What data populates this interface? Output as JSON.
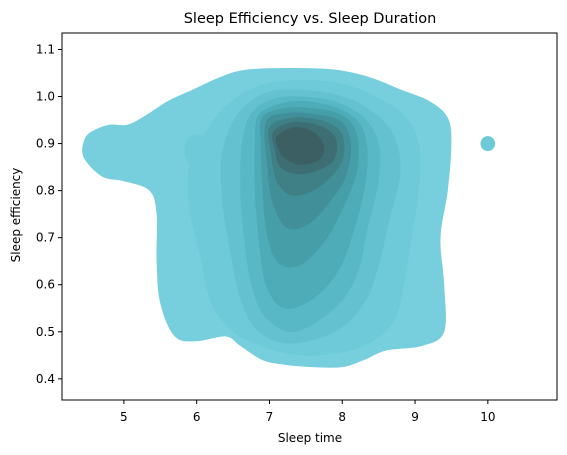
{
  "chart_data": {
    "type": "kde_density",
    "title": "Sleep Efficiency vs. Sleep Duration",
    "xlabel": "Sleep time",
    "ylabel": "Sleep efficiency",
    "xlim": [
      4.15,
      10.95
    ],
    "ylim": [
      0.355,
      1.135
    ],
    "xticks": [
      5,
      6,
      7,
      8,
      9,
      10
    ],
    "yticks": [
      0.4,
      0.5,
      0.6,
      0.7,
      0.8,
      0.9,
      1.0,
      1.1
    ],
    "grid": false,
    "legend": "none",
    "color": "#76cfdd",
    "density_peak": {
      "x": 7.3,
      "y": 0.89
    },
    "level_colors": [
      "#77cfdd",
      "#6ecad8",
      "#64c2d0",
      "#59b8c6",
      "#4eabb8",
      "#469ea9",
      "#418f98",
      "#3f7f86",
      "#3d6e74",
      "#3b5f63"
    ],
    "contours": [
      [
        [
          4.55,
          0.925
        ],
        [
          4.8,
          0.94
        ],
        [
          5.05,
          0.94
        ],
        [
          5.3,
          0.96
        ],
        [
          5.6,
          0.99
        ],
        [
          5.95,
          1.015
        ],
        [
          6.3,
          1.04
        ],
        [
          6.6,
          1.055
        ],
        [
          7.0,
          1.06
        ],
        [
          7.6,
          1.06
        ],
        [
          8.0,
          1.055
        ],
        [
          8.4,
          1.04
        ],
        [
          8.8,
          1.015
        ],
        [
          9.2,
          0.99
        ],
        [
          9.45,
          0.955
        ],
        [
          9.5,
          0.9
        ],
        [
          9.45,
          0.8
        ],
        [
          9.35,
          0.7
        ],
        [
          9.4,
          0.6
        ],
        [
          9.4,
          0.5
        ],
        [
          9.1,
          0.47
        ],
        [
          8.6,
          0.46
        ],
        [
          8.3,
          0.44
        ],
        [
          8.0,
          0.425
        ],
        [
          7.6,
          0.425
        ],
        [
          7.2,
          0.43
        ],
        [
          6.9,
          0.44
        ],
        [
          6.6,
          0.47
        ],
        [
          6.4,
          0.49
        ],
        [
          6.0,
          0.48
        ],
        [
          5.7,
          0.49
        ],
        [
          5.5,
          0.56
        ],
        [
          5.45,
          0.65
        ],
        [
          5.45,
          0.75
        ],
        [
          5.35,
          0.8
        ],
        [
          5.0,
          0.82
        ],
        [
          4.7,
          0.83
        ],
        [
          4.45,
          0.87
        ],
        [
          4.45,
          0.905
        ]
      ],
      [
        [
          6.15,
          0.93
        ],
        [
          6.4,
          0.98
        ],
        [
          6.8,
          1.02
        ],
        [
          7.3,
          1.035
        ],
        [
          7.9,
          1.03
        ],
        [
          8.4,
          1.005
        ],
        [
          8.85,
          0.96
        ],
        [
          9.05,
          0.9
        ],
        [
          9.05,
          0.8
        ],
        [
          8.95,
          0.7
        ],
        [
          8.85,
          0.6
        ],
        [
          8.7,
          0.52
        ],
        [
          8.3,
          0.47
        ],
        [
          7.7,
          0.45
        ],
        [
          7.2,
          0.455
        ],
        [
          6.8,
          0.475
        ],
        [
          6.5,
          0.5
        ],
        [
          6.2,
          0.56
        ],
        [
          6.05,
          0.66
        ],
        [
          5.9,
          0.76
        ],
        [
          5.9,
          0.85
        ]
      ],
      [
        [
          6.55,
          0.96
        ],
        [
          6.9,
          1.005
        ],
        [
          7.3,
          1.015
        ],
        [
          7.9,
          1.005
        ],
        [
          8.35,
          0.975
        ],
        [
          8.7,
          0.92
        ],
        [
          8.8,
          0.84
        ],
        [
          8.65,
          0.74
        ],
        [
          8.5,
          0.64
        ],
        [
          8.3,
          0.56
        ],
        [
          7.9,
          0.5
        ],
        [
          7.3,
          0.475
        ],
        [
          6.85,
          0.5
        ],
        [
          6.6,
          0.57
        ],
        [
          6.45,
          0.68
        ],
        [
          6.35,
          0.78
        ],
        [
          6.35,
          0.88
        ]
      ],
      [
        [
          6.75,
          0.965
        ],
        [
          7.05,
          0.995
        ],
        [
          7.4,
          1.0
        ],
        [
          7.9,
          0.99
        ],
        [
          8.3,
          0.955
        ],
        [
          8.5,
          0.9
        ],
        [
          8.5,
          0.82
        ],
        [
          8.35,
          0.72
        ],
        [
          8.2,
          0.62
        ],
        [
          7.9,
          0.55
        ],
        [
          7.35,
          0.5
        ],
        [
          6.95,
          0.53
        ],
        [
          6.75,
          0.6
        ],
        [
          6.65,
          0.7
        ],
        [
          6.6,
          0.8
        ],
        [
          6.62,
          0.9
        ]
      ],
      [
        [
          6.85,
          0.96
        ],
        [
          7.15,
          0.985
        ],
        [
          7.5,
          0.99
        ],
        [
          7.95,
          0.975
        ],
        [
          8.25,
          0.94
        ],
        [
          8.35,
          0.88
        ],
        [
          8.3,
          0.8
        ],
        [
          8.15,
          0.71
        ],
        [
          7.95,
          0.63
        ],
        [
          7.6,
          0.57
        ],
        [
          7.2,
          0.55
        ],
        [
          6.95,
          0.6
        ],
        [
          6.85,
          0.7
        ],
        [
          6.8,
          0.8
        ],
        [
          6.8,
          0.9
        ]
      ],
      [
        [
          6.9,
          0.955
        ],
        [
          7.2,
          0.975
        ],
        [
          7.6,
          0.975
        ],
        [
          8.0,
          0.96
        ],
        [
          8.2,
          0.92
        ],
        [
          8.2,
          0.84
        ],
        [
          8.0,
          0.76
        ],
        [
          7.75,
          0.69
        ],
        [
          7.4,
          0.64
        ],
        [
          7.1,
          0.65
        ],
        [
          6.95,
          0.72
        ],
        [
          6.9,
          0.82
        ],
        [
          6.88,
          0.9
        ]
      ],
      [
        [
          6.95,
          0.945
        ],
        [
          7.25,
          0.965
        ],
        [
          7.65,
          0.962
        ],
        [
          8.0,
          0.945
        ],
        [
          8.12,
          0.895
        ],
        [
          8.05,
          0.83
        ],
        [
          7.85,
          0.78
        ],
        [
          7.55,
          0.73
        ],
        [
          7.25,
          0.72
        ],
        [
          7.05,
          0.77
        ],
        [
          6.97,
          0.85
        ]
      ],
      [
        [
          7.0,
          0.935
        ],
        [
          7.3,
          0.955
        ],
        [
          7.7,
          0.95
        ],
        [
          7.98,
          0.925
        ],
        [
          8.02,
          0.875
        ],
        [
          7.88,
          0.835
        ],
        [
          7.6,
          0.8
        ],
        [
          7.3,
          0.79
        ],
        [
          7.1,
          0.82
        ],
        [
          7.02,
          0.88
        ]
      ],
      [
        [
          7.05,
          0.925
        ],
        [
          7.3,
          0.945
        ],
        [
          7.65,
          0.94
        ],
        [
          7.9,
          0.915
        ],
        [
          7.9,
          0.87
        ],
        [
          7.7,
          0.845
        ],
        [
          7.4,
          0.835
        ],
        [
          7.15,
          0.85
        ],
        [
          7.07,
          0.89
        ]
      ],
      [
        [
          7.1,
          0.915
        ],
        [
          7.35,
          0.935
        ],
        [
          7.6,
          0.925
        ],
        [
          7.75,
          0.895
        ],
        [
          7.68,
          0.865
        ],
        [
          7.42,
          0.855
        ],
        [
          7.2,
          0.87
        ],
        [
          7.12,
          0.89
        ]
      ]
    ],
    "secondary_modes": [
      {
        "x": 6.0,
        "y": 0.885,
        "rx": 0.17,
        "ry": 0.035
      },
      {
        "x": 10.0,
        "y": 0.9,
        "rx": 0.1,
        "ry": 0.016
      }
    ]
  }
}
